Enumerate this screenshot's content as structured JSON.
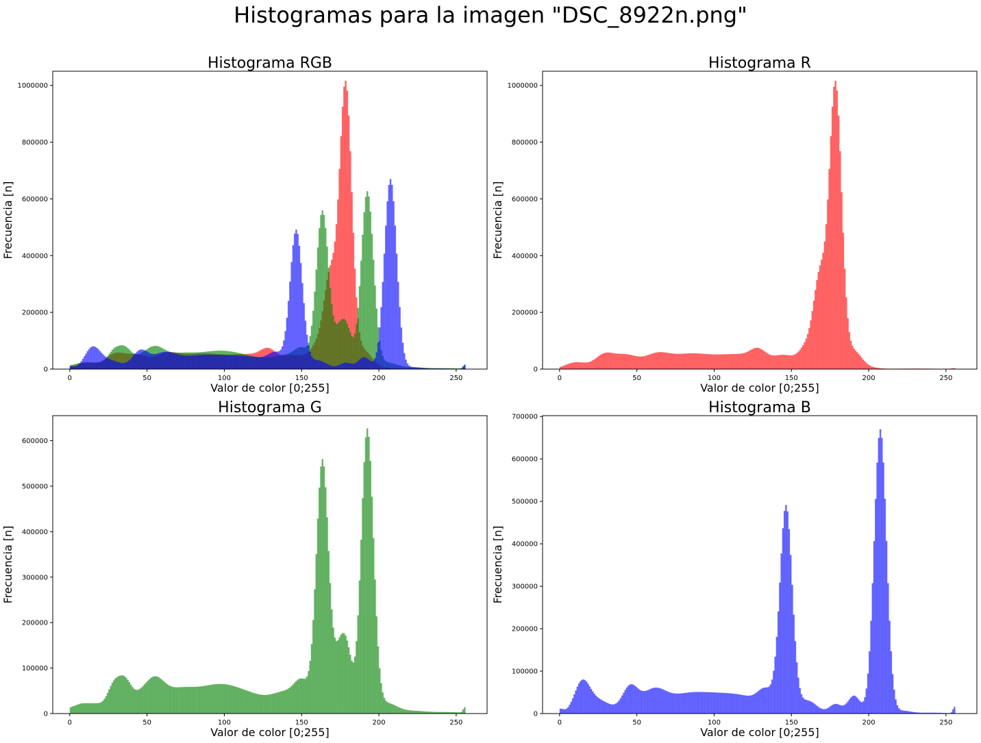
{
  "suptitle": "Histogramas para la imagen \"DSC_8922n.png\"",
  "colors": {
    "R": "#ff0000",
    "G": "#008000",
    "B": "#0000ff",
    "alpha": 0.6
  },
  "chart_data": [
    {
      "type": "bar",
      "title": "Histograma RGB",
      "xlabel": "Valor de color [0;255]",
      "ylabel": "Frecuencia [n]",
      "xlim": [
        -11,
        270
      ],
      "ylim": [
        0,
        1050000
      ],
      "xticks": [
        "0",
        "50",
        "100",
        "150",
        "200",
        "250"
      ],
      "yticks": [
        "0",
        "200000",
        "400000",
        "600000",
        "800000",
        "1000000"
      ],
      "series": [
        {
          "color": "#ff0000",
          "peaks": [
            [
              0,
              0,
              5
            ],
            [
              5,
              8000,
              5
            ],
            [
              12,
              20000,
              6
            ],
            [
              28,
              45000,
              6
            ],
            [
              42,
              48000,
              8
            ],
            [
              62,
              43000,
              8
            ],
            [
              80,
              37000,
              12
            ],
            [
              100,
              34000,
              15
            ],
            [
              120,
              34000,
              12
            ],
            [
              128,
              37000,
              5
            ],
            [
              145,
              45000,
              8
            ],
            [
              160,
              75000,
              5
            ],
            [
              168,
              300000,
              4
            ],
            [
              178,
              1000000,
              4
            ],
            [
              190,
              60000,
              5
            ],
            [
              200,
              5000,
              6
            ],
            [
              230,
              2000,
              15
            ],
            [
              255,
              3000,
              2
            ]
          ]
        },
        {
          "color": "#008000",
          "peaks": [
            [
              0,
              5000,
              2
            ],
            [
              5,
              10000,
              4
            ],
            [
              15,
              22000,
              8
            ],
            [
              28,
              52000,
              4
            ],
            [
              35,
              52000,
              4
            ],
            [
              45,
              38000,
              8
            ],
            [
              55,
              46000,
              6
            ],
            [
              68,
              40000,
              10
            ],
            [
              85,
              32000,
              12
            ],
            [
              100,
              36000,
              12
            ],
            [
              120,
              33000,
              15
            ],
            [
              140,
              32000,
              8
            ],
            [
              150,
              55000,
              5
            ],
            [
              163,
              555000,
              4
            ],
            [
              175,
              150000,
              4
            ],
            [
              180,
              70000,
              3
            ],
            [
              192,
              625000,
              4
            ],
            [
              205,
              20000,
              6
            ],
            [
              220,
              6000,
              10
            ],
            [
              245,
              3000,
              10
            ],
            [
              255,
              12000,
              1
            ]
          ]
        },
        {
          "color": "#0000ff",
          "peaks": [
            [
              0,
              10000,
              2
            ],
            [
              14,
              68000,
              5
            ],
            [
              25,
              30000,
              8
            ],
            [
              45,
              58000,
              5
            ],
            [
              60,
              50000,
              8
            ],
            [
              80,
              38000,
              12
            ],
            [
              100,
              32000,
              12
            ],
            [
              120,
              33000,
              12
            ],
            [
              133,
              40000,
              5
            ],
            [
              146,
              485000,
              4
            ],
            [
              160,
              30000,
              6
            ],
            [
              178,
              22000,
              4
            ],
            [
              190,
              42000,
              4
            ],
            [
              207,
              670000,
              4
            ],
            [
              222,
              6000,
              5
            ],
            [
              240,
              2000,
              10
            ],
            [
              255,
              15000,
              1
            ]
          ]
        }
      ]
    },
    {
      "type": "bar",
      "title": "Histograma R",
      "xlabel": "Valor de color [0;255]",
      "ylabel": "Frecuencia [n]",
      "xlim": [
        -11,
        270
      ],
      "ylim": [
        0,
        1050000
      ],
      "xticks": [
        "0",
        "50",
        "100",
        "150",
        "200",
        "250"
      ],
      "yticks": [
        "0",
        "200000",
        "400000",
        "600000",
        "800000",
        "1000000"
      ],
      "series": [
        {
          "color": "#ff0000",
          "peaks": [
            [
              0,
              0,
              5
            ],
            [
              5,
              8000,
              5
            ],
            [
              12,
              20000,
              6
            ],
            [
              28,
              45000,
              6
            ],
            [
              42,
              48000,
              8
            ],
            [
              62,
              43000,
              8
            ],
            [
              80,
              37000,
              12
            ],
            [
              100,
              34000,
              15
            ],
            [
              120,
              34000,
              12
            ],
            [
              128,
              37000,
              5
            ],
            [
              145,
              45000,
              8
            ],
            [
              160,
              75000,
              5
            ],
            [
              168,
              300000,
              4
            ],
            [
              178,
              1000000,
              4
            ],
            [
              190,
              60000,
              5
            ],
            [
              200,
              5000,
              6
            ],
            [
              230,
              2000,
              15
            ],
            [
              255,
              3000,
              2
            ]
          ]
        }
      ]
    },
    {
      "type": "bar",
      "title": "Histograma G",
      "xlabel": "Valor de color [0;255]",
      "ylabel": "Frecuencia [n]",
      "xlim": [
        -11,
        270
      ],
      "ylim": [
        0,
        655000
      ],
      "xticks": [
        "0",
        "50",
        "100",
        "150",
        "200",
        "250"
      ],
      "yticks": [
        "0",
        "100000",
        "200000",
        "300000",
        "400000",
        "500000",
        "600000"
      ],
      "series": [
        {
          "color": "#008000",
          "peaks": [
            [
              0,
              5000,
              2
            ],
            [
              5,
              10000,
              4
            ],
            [
              15,
              22000,
              8
            ],
            [
              28,
              52000,
              4
            ],
            [
              35,
              52000,
              4
            ],
            [
              45,
              38000,
              8
            ],
            [
              55,
              46000,
              6
            ],
            [
              68,
              40000,
              10
            ],
            [
              85,
              32000,
              12
            ],
            [
              100,
              36000,
              12
            ],
            [
              120,
              33000,
              15
            ],
            [
              140,
              32000,
              8
            ],
            [
              150,
              55000,
              5
            ],
            [
              163,
              555000,
              4
            ],
            [
              175,
              150000,
              4
            ],
            [
              180,
              70000,
              3
            ],
            [
              192,
              625000,
              4
            ],
            [
              205,
              20000,
              6
            ],
            [
              220,
              6000,
              10
            ],
            [
              245,
              3000,
              10
            ],
            [
              255,
              12000,
              1
            ]
          ]
        }
      ]
    },
    {
      "type": "bar",
      "title": "Histograma B",
      "xlabel": "Valor de color [0;255]",
      "ylabel": "Frecuencia [n]",
      "xlim": [
        -11,
        270
      ],
      "ylim": [
        0,
        702000
      ],
      "xticks": [
        "0",
        "50",
        "100",
        "150",
        "200",
        "250"
      ],
      "yticks": [
        "0",
        "100000",
        "200000",
        "300000",
        "400000",
        "500000",
        "600000",
        "700000"
      ],
      "series": [
        {
          "color": "#0000ff",
          "peaks": [
            [
              0,
              10000,
              2
            ],
            [
              14,
              68000,
              5
            ],
            [
              25,
              30000,
              8
            ],
            [
              45,
              58000,
              5
            ],
            [
              60,
              50000,
              8
            ],
            [
              80,
              38000,
              12
            ],
            [
              100,
              32000,
              12
            ],
            [
              120,
              33000,
              12
            ],
            [
              133,
              40000,
              5
            ],
            [
              146,
              485000,
              4
            ],
            [
              160,
              30000,
              6
            ],
            [
              178,
              22000,
              4
            ],
            [
              190,
              42000,
              4
            ],
            [
              207,
              670000,
              4
            ],
            [
              222,
              6000,
              5
            ],
            [
              240,
              2000,
              10
            ],
            [
              255,
              15000,
              1
            ]
          ]
        }
      ]
    }
  ]
}
